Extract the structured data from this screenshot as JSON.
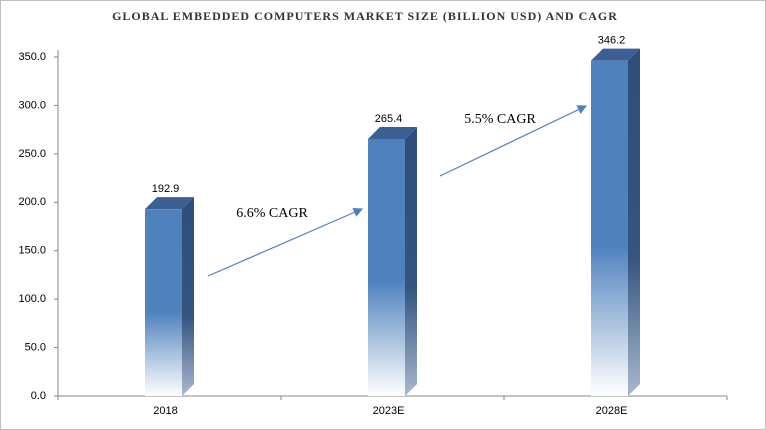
{
  "chart_data": {
    "type": "bar3d",
    "title": "GLOBAL EMBEDDED  COMPUTERS  MARKET  SIZE (BILLION USD) AND CAGR",
    "categories": [
      "2018",
      "2023E",
      "2028E"
    ],
    "values": [
      192.9,
      265.4,
      346.2
    ],
    "color": "#4f81bd",
    "ylim": [
      0,
      350
    ],
    "yticks": [
      {
        "value": 0,
        "label": "0.0"
      },
      {
        "value": 50,
        "label": "50.0"
      },
      {
        "value": 100,
        "label": "100.0"
      },
      {
        "value": 150,
        "label": "150.0"
      },
      {
        "value": 200,
        "label": "200.0"
      },
      {
        "value": 250,
        "label": "250.0"
      },
      {
        "value": 300,
        "label": "300.0"
      },
      {
        "value": 350,
        "label": "350.0"
      }
    ],
    "annotations": [
      "6.6% CAGR",
      "5.5% CAGR"
    ]
  }
}
